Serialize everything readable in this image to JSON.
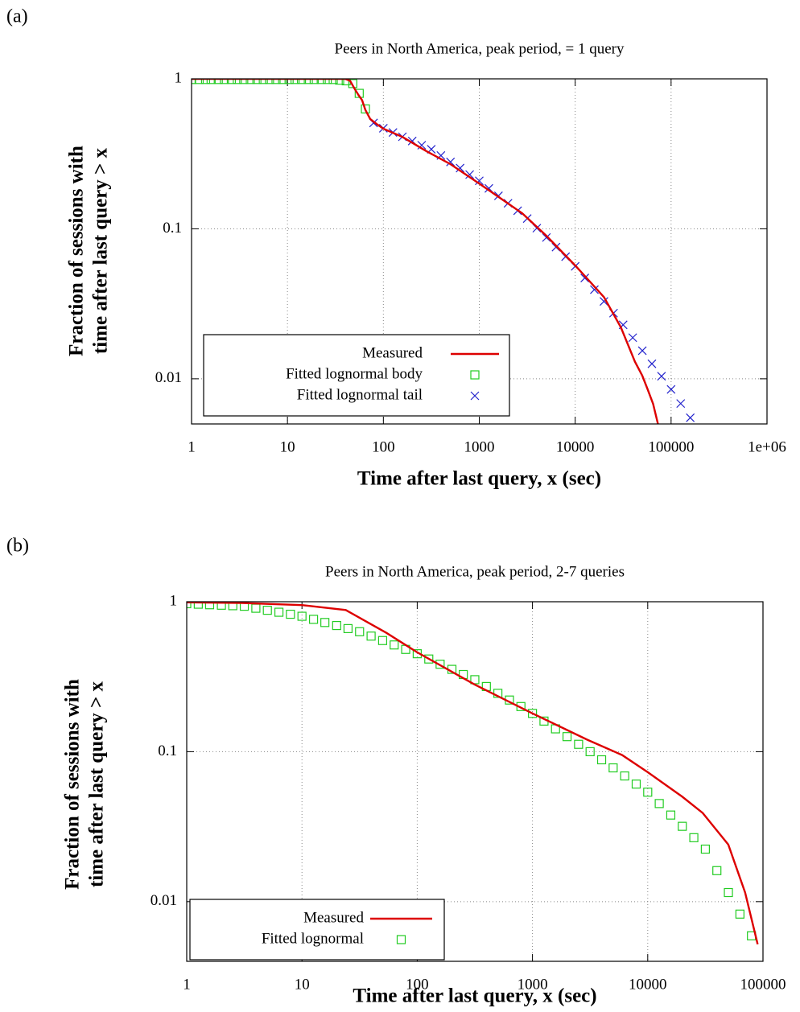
{
  "chart_data": [
    {
      "type": "line",
      "panel": "(a)",
      "title": "Peers in North America, peak period, = 1 query",
      "xlabel": "Time after last query, x (sec)",
      "ylabel": [
        "Fraction of sessions with",
        "time after last query > x"
      ],
      "log_x": true,
      "log_y": true,
      "grid": true,
      "legend": "lower left",
      "xlim": [
        1,
        1000000
      ],
      "ylim": [
        0.005,
        1
      ],
      "xticks": [
        1,
        10,
        100,
        1000,
        10000,
        100000,
        {
          "value": 1000000,
          "label": "1e+06"
        }
      ],
      "yticks": [
        0.01,
        0.1,
        1
      ],
      "series": [
        {
          "name": "Measured",
          "color": "#dd0000",
          "style": "line",
          "x": [
            1,
            40,
            45,
            50,
            55,
            60,
            65,
            73,
            85,
            100,
            158,
            280,
            500,
            1000,
            2800,
            5000,
            10000,
            20000,
            30000,
            42000,
            50000,
            57000,
            65000,
            73000
          ],
          "values": [
            1,
            1,
            0.97,
            0.86,
            0.78,
            0.72,
            0.62,
            0.54,
            0.5,
            0.465,
            0.41,
            0.33,
            0.27,
            0.2,
            0.127,
            0.09,
            0.057,
            0.035,
            0.022,
            0.013,
            0.0105,
            0.0085,
            0.0068,
            0.005
          ]
        },
        {
          "name": "Fitted lognormal body",
          "color": "#22cc22",
          "style": "squares",
          "x": [
            1,
            1.2,
            1.4,
            1.6,
            1.9,
            2.2,
            2.6,
            3,
            3.5,
            4.1,
            4.8,
            5.6,
            6.5,
            7.6,
            8.9,
            10.4,
            12,
            14,
            16.5,
            19,
            22.5,
            26,
            30,
            35,
            41,
            48,
            56,
            65
          ],
          "values": [
            0.99,
            0.99,
            0.99,
            0.99,
            0.99,
            0.99,
            0.99,
            0.99,
            0.99,
            0.99,
            0.99,
            0.99,
            0.99,
            0.99,
            0.99,
            0.99,
            0.99,
            0.99,
            0.99,
            0.99,
            0.99,
            0.99,
            0.99,
            0.98,
            0.97,
            0.93,
            0.8,
            0.63
          ]
        },
        {
          "name": "Fitted lognormal tail",
          "color": "#2222cc",
          "style": "crosses",
          "x": [
            79,
            100,
            126,
            158,
            200,
            251,
            316,
            398,
            501,
            631,
            794,
            1000,
            1259,
            1585,
            1995,
            2512,
            3162,
            3981,
            5012,
            6310,
            7943,
            10000,
            12589,
            15849,
            19953,
            25119,
            31623,
            39811,
            50119,
            63096,
            79433,
            100000,
            125893,
            158489
          ],
          "values": [
            0.508,
            0.468,
            0.439,
            0.411,
            0.385,
            0.361,
            0.339,
            0.308,
            0.279,
            0.254,
            0.23,
            0.209,
            0.186,
            0.166,
            0.148,
            0.132,
            0.117,
            0.101,
            0.0875,
            0.0755,
            0.0652,
            0.0562,
            0.047,
            0.0393,
            0.0328,
            0.0274,
            0.0229,
            0.0188,
            0.0154,
            0.0126,
            0.0104,
            0.0085,
            0.00684,
            0.0055
          ]
        }
      ]
    },
    {
      "type": "line",
      "panel": "(b)",
      "title": "Peers in North America, peak period, 2-7 queries",
      "xlabel": "Time after last query, x (sec)",
      "ylabel": [
        "Fraction of sessions with",
        "time after last query > x"
      ],
      "log_x": true,
      "log_y": true,
      "grid": true,
      "legend": "lower left",
      "xlim": [
        1,
        100000
      ],
      "ylim": [
        0.004,
        1
      ],
      "xticks": [
        1,
        10,
        100,
        1000,
        10000,
        100000
      ],
      "yticks": [
        0.01,
        0.1,
        1
      ],
      "series": [
        {
          "name": "Measured",
          "color": "#dd0000",
          "style": "line",
          "x": [
            1,
            3,
            10,
            24,
            54,
            100,
            316,
            1000,
            3000,
            6000,
            10000,
            20000,
            30000,
            50000,
            70000,
            90000
          ],
          "values": [
            0.99,
            0.98,
            0.95,
            0.88,
            0.62,
            0.46,
            0.28,
            0.18,
            0.12,
            0.095,
            0.073,
            0.05,
            0.039,
            0.024,
            0.0115,
            0.0052
          ]
        },
        {
          "name": "Fitted lognormal",
          "color": "#22cc22",
          "style": "squares",
          "x": [
            1,
            1.26,
            1.58,
            2,
            2.51,
            3.16,
            3.98,
            5.01,
            6.31,
            7.94,
            10,
            12.6,
            15.8,
            20,
            25.1,
            31.6,
            39.8,
            50.1,
            63.1,
            79.4,
            100,
            126,
            158,
            200,
            251,
            316,
            398,
            501,
            631,
            794,
            1000,
            1259,
            1585,
            1995,
            2512,
            3162,
            3981,
            5012,
            6310,
            7943,
            10000,
            12589,
            15849,
            19953,
            25119,
            31623,
            39811,
            50119,
            63096,
            79433
          ],
          "values": [
            0.97,
            0.963,
            0.955,
            0.948,
            0.941,
            0.933,
            0.905,
            0.877,
            0.851,
            0.825,
            0.8,
            0.763,
            0.727,
            0.694,
            0.662,
            0.631,
            0.59,
            0.551,
            0.515,
            0.481,
            0.45,
            0.415,
            0.383,
            0.354,
            0.327,
            0.302,
            0.272,
            0.245,
            0.221,
            0.2,
            0.18,
            0.16,
            0.142,
            0.126,
            0.112,
            0.1,
            0.0883,
            0.078,
            0.0689,
            0.0608,
            0.0537,
            0.0451,
            0.0378,
            0.0318,
            0.0267,
            0.0224,
            0.0161,
            0.0115,
            0.00826,
            0.00592
          ]
        }
      ]
    }
  ]
}
